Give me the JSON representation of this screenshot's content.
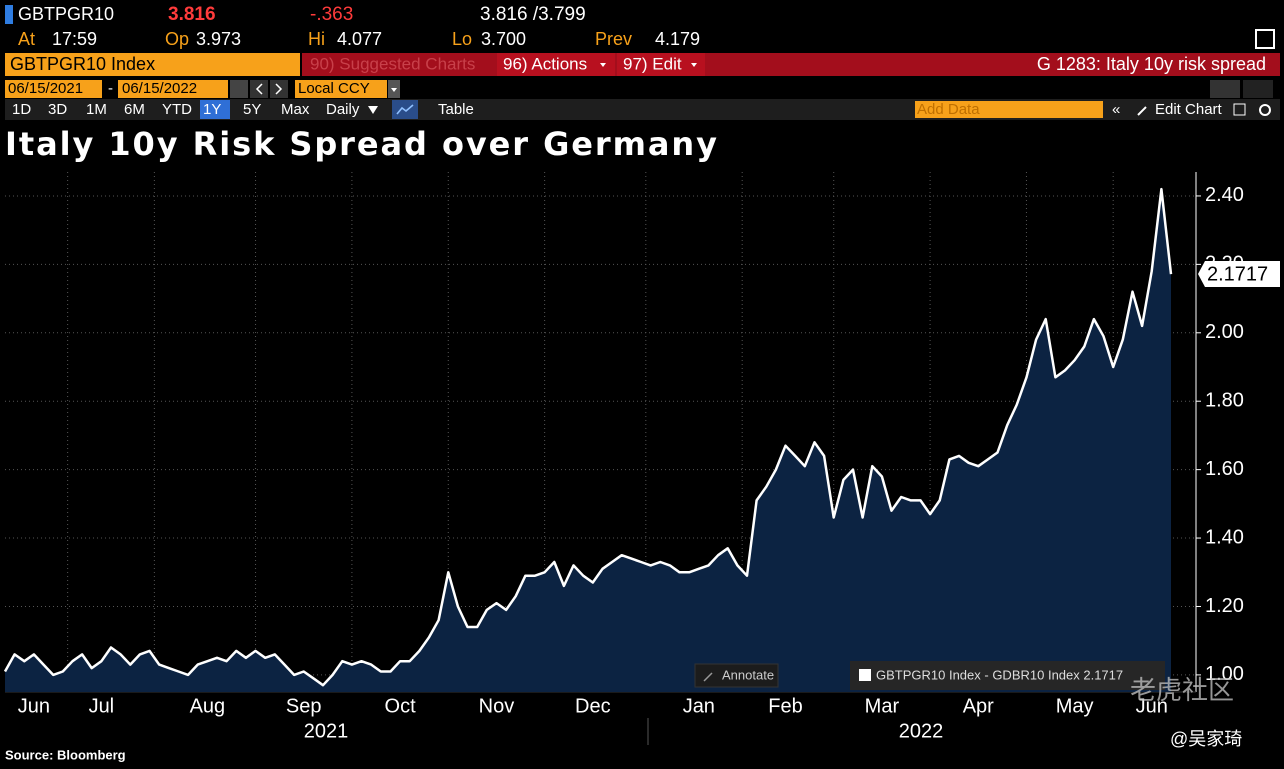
{
  "header": {
    "ticker": "GBTPGR10",
    "last": "3.816",
    "change": "-.363",
    "bid_ask": "3.816 /3.799",
    "stats": [
      {
        "label": "At",
        "value": "17:59"
      },
      {
        "label": "Op",
        "value": "3.973"
      },
      {
        "label": "Hi",
        "value": "4.077"
      },
      {
        "label": "Lo",
        "value": "3.700"
      },
      {
        "label": "Prev",
        "value": "4.179"
      }
    ]
  },
  "toolbar": {
    "security": "GBTPGR10 Index",
    "menu": [
      "90) Suggested Charts",
      "96) Actions",
      "97) Edit"
    ],
    "page": "G 1283: Italy 10y risk spread",
    "start_date": "06/15/2021",
    "date_sep": "-",
    "end_date": "06/15/2022",
    "currency": "Local CCY",
    "ranges": [
      "1D",
      "3D",
      "1M",
      "6M",
      "YTD",
      "1Y",
      "5Y",
      "Max"
    ],
    "selected_range": "1Y",
    "frequency": "Daily",
    "table": "Table",
    "add_data": "Add Data",
    "edit_chart": "Edit Chart"
  },
  "chart_data": {
    "type": "area",
    "title": "Italy 10y Risk Spread over Germany",
    "categories": [
      null,
      null,
      null,
      "Jun",
      null,
      null,
      null,
      null,
      null,
      null,
      "Jul",
      null,
      null,
      null,
      null,
      null,
      null,
      null,
      null,
      null,
      null,
      "Aug",
      null,
      null,
      null,
      null,
      null,
      null,
      null,
      null,
      null,
      "Sep",
      null,
      null,
      null,
      null,
      null,
      null,
      null,
      null,
      null,
      "Oct",
      null,
      null,
      null,
      null,
      null,
      null,
      null,
      null,
      null,
      "Nov",
      null,
      null,
      null,
      null,
      null,
      null,
      null,
      null,
      null,
      "Dec",
      null,
      null,
      null,
      null,
      null,
      null,
      null,
      null,
      null,
      null,
      "Jan",
      null,
      null,
      null,
      null,
      null,
      null,
      null,
      null,
      "Feb",
      null,
      null,
      null,
      null,
      null,
      null,
      null,
      null,
      null,
      "Mar",
      null,
      null,
      null,
      null,
      null,
      null,
      null,
      null,
      null,
      "Apr",
      null,
      null,
      null,
      null,
      null,
      null,
      null,
      null,
      null,
      "May",
      null,
      null,
      null,
      null,
      null,
      null,
      null,
      "Jun",
      null,
      null
    ],
    "series": [
      {
        "name": "GBTPGR10 Index - GDBR10 Index 2.1717",
        "color": "#ffffff",
        "fill": "#0c2342",
        "values": [
          1.01,
          1.06,
          1.04,
          1.06,
          1.03,
          1.0,
          1.01,
          1.04,
          1.06,
          1.02,
          1.04,
          1.08,
          1.06,
          1.03,
          1.06,
          1.07,
          1.03,
          1.02,
          1.01,
          1.0,
          1.03,
          1.04,
          1.05,
          1.04,
          1.07,
          1.05,
          1.07,
          1.05,
          1.06,
          1.03,
          1.0,
          1.01,
          0.99,
          0.97,
          1.0,
          1.04,
          1.03,
          1.04,
          1.03,
          1.01,
          1.01,
          1.04,
          1.04,
          1.07,
          1.11,
          1.16,
          1.3,
          1.2,
          1.14,
          1.14,
          1.19,
          1.21,
          1.19,
          1.23,
          1.29,
          1.29,
          1.3,
          1.33,
          1.26,
          1.32,
          1.29,
          1.27,
          1.31,
          1.33,
          1.35,
          1.34,
          1.33,
          1.32,
          1.33,
          1.32,
          1.3,
          1.3,
          1.31,
          1.32,
          1.35,
          1.37,
          1.32,
          1.29,
          1.51,
          1.55,
          1.6,
          1.67,
          1.64,
          1.61,
          1.68,
          1.64,
          1.46,
          1.57,
          1.6,
          1.46,
          1.61,
          1.58,
          1.48,
          1.52,
          1.51,
          1.51,
          1.47,
          1.51,
          1.63,
          1.64,
          1.62,
          1.61,
          1.63,
          1.65,
          1.73,
          1.79,
          1.87,
          1.98,
          2.04,
          1.87,
          1.89,
          1.92,
          1.96,
          2.04,
          1.99,
          1.9,
          1.98,
          2.12,
          2.02,
          2.18,
          2.42,
          2.1717
        ]
      }
    ],
    "ylim": [
      0.95,
      2.47
    ],
    "yticks": [
      {
        "value": 1.0,
        "label": "1.00"
      },
      {
        "value": 1.2,
        "label": "1.20"
      },
      {
        "value": 1.4,
        "label": "1.40"
      },
      {
        "value": 1.6,
        "label": "1.60"
      },
      {
        "value": 1.8,
        "label": "1.80"
      },
      {
        "value": 2.0,
        "label": "2.00"
      },
      {
        "value": 2.2,
        "label": "2.20"
      },
      {
        "value": 2.4,
        "label": "2.40"
      }
    ],
    "grid": true,
    "axis_side": "right",
    "years": [
      "2021",
      "2022"
    ],
    "annotate": "Annotate"
  },
  "footer": {
    "source": "Source: Bloomberg",
    "watermark": "老虎社区",
    "author": "@吴家琦"
  }
}
